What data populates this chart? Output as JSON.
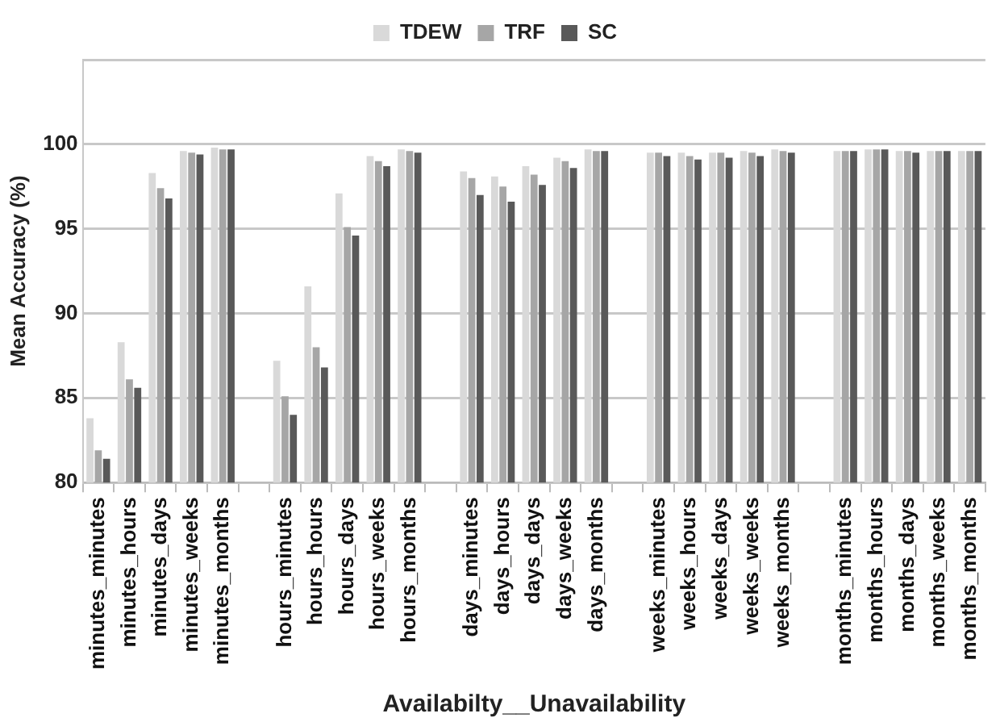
{
  "chart_data": {
    "type": "bar",
    "xlabel": "Availabilty__Unavailability",
    "ylabel": "Mean Accuracy (%)",
    "categories": [
      "minutes_minutes",
      "minutes_hours",
      "minutes_days",
      "minutes_weeks",
      "minutes_months",
      null,
      "hours_minutes",
      "hours_hours",
      "hours_days",
      "hours_weeks",
      "hours_months",
      null,
      "days_minutes",
      "days_hours",
      "days_days",
      "days_weeks",
      "days_months",
      null,
      "weeks_minutes",
      "weeks_hours",
      "weeks_days",
      "weeks_weeks",
      "weeks_months",
      null,
      "months_minutes",
      "months_hours",
      "months_days",
      "months_weeks",
      "months_months"
    ],
    "series": [
      {
        "name": "TDEW",
        "color": "#d9d9d9",
        "values": [
          83.8,
          88.3,
          98.3,
          99.6,
          99.8,
          null,
          87.2,
          91.6,
          97.1,
          99.3,
          99.7,
          null,
          98.4,
          98.1,
          98.7,
          99.2,
          99.7,
          null,
          99.5,
          99.5,
          99.5,
          99.6,
          99.7,
          null,
          99.6,
          99.7,
          99.6,
          99.6,
          99.6
        ]
      },
      {
        "name": "TRF",
        "color": "#a6a6a6",
        "values": [
          81.9,
          86.1,
          97.4,
          99.5,
          99.7,
          null,
          85.1,
          88.0,
          95.1,
          99.0,
          99.6,
          null,
          98.0,
          97.5,
          98.2,
          99.0,
          99.6,
          null,
          99.5,
          99.3,
          99.5,
          99.5,
          99.6,
          null,
          99.6,
          99.7,
          99.6,
          99.6,
          99.6
        ]
      },
      {
        "name": "SC",
        "color": "#595959",
        "values": [
          81.4,
          85.6,
          96.8,
          99.4,
          99.7,
          null,
          84.0,
          86.8,
          94.6,
          98.7,
          99.5,
          null,
          97.0,
          96.6,
          97.6,
          98.6,
          99.6,
          null,
          99.3,
          99.1,
          99.2,
          99.3,
          99.5,
          null,
          99.6,
          99.7,
          99.5,
          99.6,
          99.6
        ]
      }
    ],
    "ylim": [
      80,
      105
    ],
    "yticks": [
      80,
      85,
      90,
      95,
      100,
      {
        "value": 105,
        "label": null
      }
    ],
    "grid": "y",
    "legend": "top"
  }
}
